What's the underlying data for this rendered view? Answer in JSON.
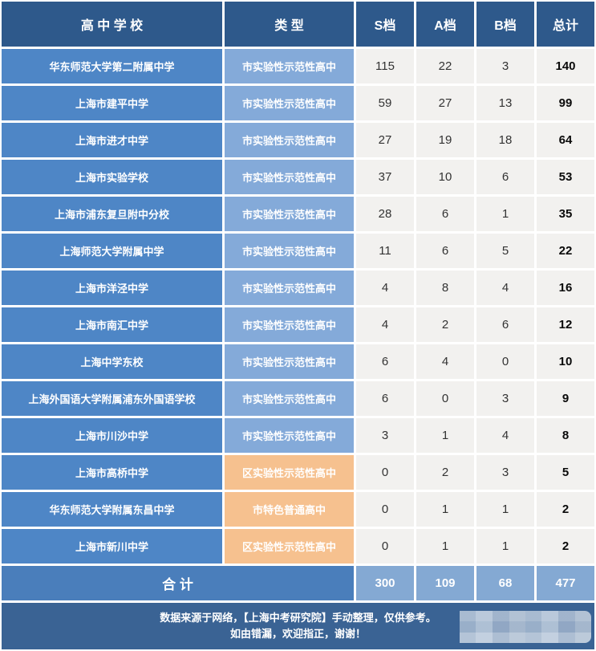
{
  "table": {
    "headers": [
      "高 中 学 校",
      "类 型",
      "S档",
      "A档",
      "B档",
      "总计"
    ],
    "rows": [
      {
        "school": "华东师范大学第二附属中学",
        "type": "市实验性示范性高中",
        "type_variant": "blue",
        "s": 115,
        "a": 22,
        "b": 3,
        "total": 140
      },
      {
        "school": "上海市建平中学",
        "type": "市实验性示范性高中",
        "type_variant": "blue",
        "s": 59,
        "a": 27,
        "b": 13,
        "total": 99
      },
      {
        "school": "上海市进才中学",
        "type": "市实验性示范性高中",
        "type_variant": "blue",
        "s": 27,
        "a": 19,
        "b": 18,
        "total": 64
      },
      {
        "school": "上海市实验学校",
        "type": "市实验性示范性高中",
        "type_variant": "blue",
        "s": 37,
        "a": 10,
        "b": 6,
        "total": 53
      },
      {
        "school": "上海市浦东复旦附中分校",
        "type": "市实验性示范性高中",
        "type_variant": "blue",
        "s": 28,
        "a": 6,
        "b": 1,
        "total": 35
      },
      {
        "school": "上海师范大学附属中学",
        "type": "市实验性示范性高中",
        "type_variant": "blue",
        "s": 11,
        "a": 6,
        "b": 5,
        "total": 22
      },
      {
        "school": "上海市洋泾中学",
        "type": "市实验性示范性高中",
        "type_variant": "blue",
        "s": 4,
        "a": 8,
        "b": 4,
        "total": 16
      },
      {
        "school": "上海市南汇中学",
        "type": "市实验性示范性高中",
        "type_variant": "blue",
        "s": 4,
        "a": 2,
        "b": 6,
        "total": 12
      },
      {
        "school": "上海中学东校",
        "type": "市实验性示范性高中",
        "type_variant": "blue",
        "s": 6,
        "a": 4,
        "b": 0,
        "total": 10
      },
      {
        "school": "上海外国语大学附属浦东外国语学校",
        "type": "市实验性示范性高中",
        "type_variant": "blue",
        "s": 6,
        "a": 0,
        "b": 3,
        "total": 9
      },
      {
        "school": "上海市川沙中学",
        "type": "市实验性示范性高中",
        "type_variant": "blue",
        "s": 3,
        "a": 1,
        "b": 4,
        "total": 8
      },
      {
        "school": "上海市高桥中学",
        "type": "区实验性示范性高中",
        "type_variant": "orange",
        "s": 0,
        "a": 2,
        "b": 3,
        "total": 5
      },
      {
        "school": "华东师范大学附属东昌中学",
        "type": "市特色普通高中",
        "type_variant": "orange",
        "s": 0,
        "a": 1,
        "b": 1,
        "total": 2
      },
      {
        "school": "上海市新川中学",
        "type": "区实验性示范性高中",
        "type_variant": "orange",
        "s": 0,
        "a": 1,
        "b": 1,
        "total": 2
      }
    ],
    "total_row": {
      "label": "合  计",
      "s": 300,
      "a": 109,
      "b": 68,
      "total": 477
    }
  },
  "footer": {
    "line1": "数据来源于网络，【上海中考研究院】手动整理，仅供参考。",
    "line2": "如由错漏，欢迎指正，谢谢！"
  },
  "colors": {
    "header_bg": "#2E598B",
    "school_bg": "#4E86C6",
    "type_blue_bg": "#84AAD9",
    "type_orange_bg": "#F6C18F",
    "data_cell_bg": "#F2F1EF",
    "total_label_bg": "#4A7EBB",
    "total_value_bg": "#84A9D3",
    "footer_bg": "#3A6394",
    "text_light": "#FFFFFF",
    "text_dark": "#333333"
  },
  "chart_data": {
    "type": "table",
    "title": "",
    "columns": [
      "高中学校",
      "类型",
      "S档",
      "A档",
      "B档",
      "总计"
    ],
    "rows": [
      [
        "华东师范大学第二附属中学",
        "市实验性示范性高中",
        115,
        22,
        3,
        140
      ],
      [
        "上海市建平中学",
        "市实验性示范性高中",
        59,
        27,
        13,
        99
      ],
      [
        "上海市进才中学",
        "市实验性示范性高中",
        27,
        19,
        18,
        64
      ],
      [
        "上海市实验学校",
        "市实验性示范性高中",
        37,
        10,
        6,
        53
      ],
      [
        "上海市浦东复旦附中分校",
        "市实验性示范性高中",
        28,
        6,
        1,
        35
      ],
      [
        "上海师范大学附属中学",
        "市实验性示范性高中",
        11,
        6,
        5,
        22
      ],
      [
        "上海市洋泾中学",
        "市实验性示范性高中",
        4,
        8,
        4,
        16
      ],
      [
        "上海市南汇中学",
        "市实验性示范性高中",
        4,
        2,
        6,
        12
      ],
      [
        "上海中学东校",
        "市实验性示范性高中",
        6,
        4,
        0,
        10
      ],
      [
        "上海外国语大学附属浦东外国语学校",
        "市实验性示范性高中",
        6,
        0,
        3,
        9
      ],
      [
        "上海市川沙中学",
        "市实验性示范性高中",
        3,
        1,
        4,
        8
      ],
      [
        "上海市高桥中学",
        "区实验性示范性高中",
        0,
        2,
        3,
        5
      ],
      [
        "华东师范大学附属东昌中学",
        "市特色普通高中",
        0,
        1,
        1,
        2
      ],
      [
        "上海市新川中学",
        "区实验性示范性高中",
        0,
        1,
        1,
        2
      ]
    ],
    "totals": [
      "合计",
      "",
      300,
      109,
      68,
      477
    ],
    "notes": [
      "数据来源于网络，【上海中考研究院】手动整理，仅供参考。",
      "如由错漏，欢迎指正，谢谢！"
    ]
  }
}
